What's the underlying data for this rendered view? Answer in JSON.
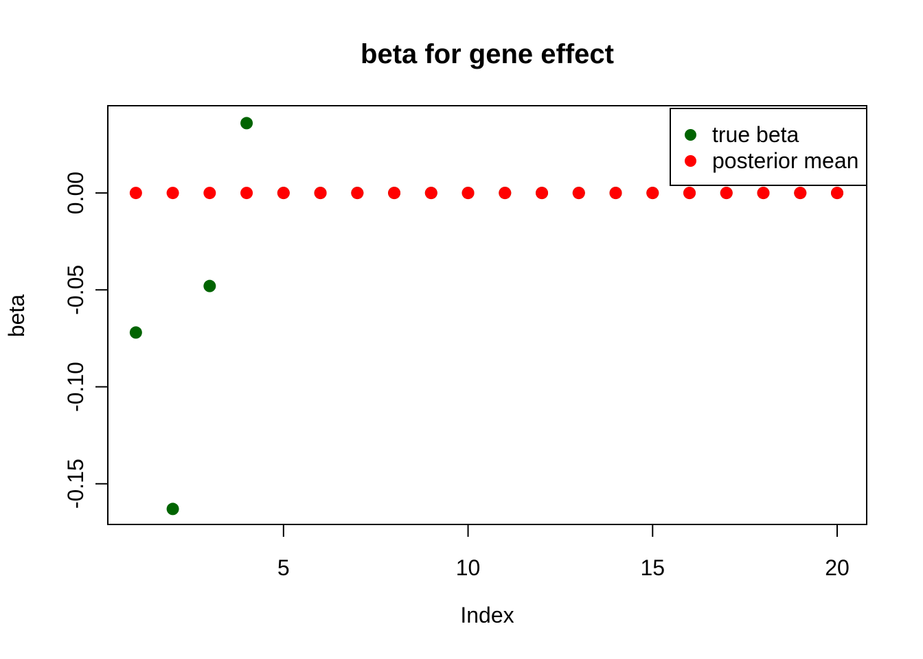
{
  "page": {
    "background": "#ffffff",
    "text_color": "#000000"
  },
  "chart_data": {
    "type": "scatter",
    "title": "beta for gene effect",
    "xlabel": "Index",
    "ylabel": "beta",
    "x": [
      1,
      2,
      3,
      4,
      5,
      6,
      7,
      8,
      9,
      10,
      11,
      12,
      13,
      14,
      15,
      16,
      17,
      18,
      19,
      20
    ],
    "series": [
      {
        "name": "true beta",
        "color": "#006400",
        "values": [
          -0.072,
          -0.163,
          -0.048,
          0.036,
          0,
          0,
          0,
          0,
          0,
          0,
          0,
          0,
          0,
          0,
          0,
          0,
          0,
          0,
          0,
          0
        ]
      },
      {
        "name": "posterior mean",
        "color": "#ff0000",
        "values": [
          0,
          0,
          0,
          0,
          0,
          0,
          0,
          0,
          0,
          0,
          0,
          0,
          0,
          0,
          0,
          0,
          0,
          0,
          0,
          0
        ]
      }
    ],
    "xlim": [
      0.24,
      20.8
    ],
    "ylim": [
      -0.171,
      0.045
    ],
    "xticks": {
      "values": [
        5,
        10,
        15,
        20
      ],
      "labels": [
        "5",
        "10",
        "15",
        "20"
      ]
    },
    "yticks": {
      "values": [
        0,
        -0.05,
        -0.1,
        -0.15
      ],
      "labels": [
        "0.00",
        "-0.05",
        "-0.10",
        "-0.15"
      ]
    },
    "grid": false,
    "legend_position": "top-right",
    "legend": [
      {
        "label": "true beta",
        "color": "#006400"
      },
      {
        "label": "posterior mean",
        "color": "#ff0000"
      }
    ]
  }
}
